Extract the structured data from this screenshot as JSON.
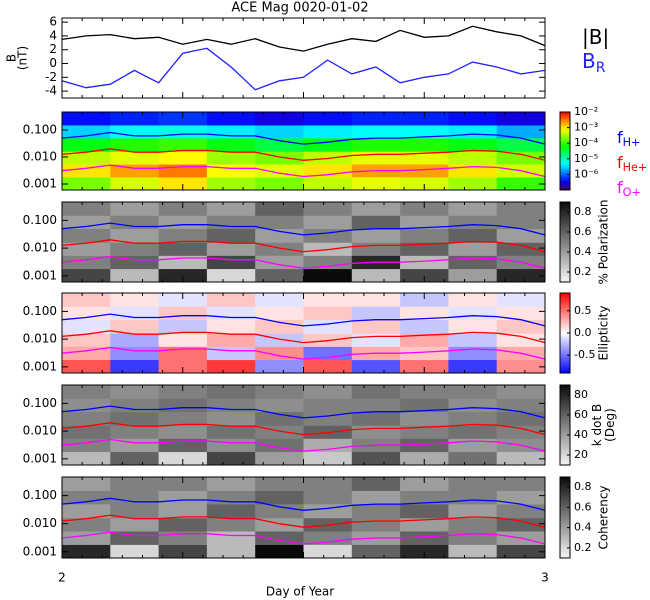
{
  "chart_data": [
    {
      "type": "line",
      "title": "ACE Mag 0020-01-02",
      "ylabel": [
        "B",
        "(nT)"
      ],
      "xlim": [
        2,
        3
      ],
      "ylim": [
        -5,
        6.6
      ],
      "yticks": [
        -4,
        -2,
        0,
        2,
        4,
        6
      ],
      "x": [
        2,
        2.05,
        2.1,
        2.15,
        2.2,
        2.25,
        2.3,
        2.35,
        2.4,
        2.45,
        2.5,
        2.55,
        2.6,
        2.65,
        2.7,
        2.75,
        2.8,
        2.85,
        2.9,
        2.95,
        3
      ],
      "series": [
        {
          "name": "|B|",
          "color": "#000000",
          "values": [
            3.5,
            4,
            4.2,
            3.6,
            3.8,
            2.8,
            3.5,
            2.8,
            3.6,
            2.4,
            1.8,
            2.8,
            3.6,
            3.2,
            4.8,
            3.8,
            4.0,
            5.4,
            4.6,
            4.0,
            2.6
          ]
        },
        {
          "name": "B",
          "subscript": "R",
          "color": "#2020ff",
          "values": [
            -2.5,
            -3.5,
            -3,
            -1,
            -2.8,
            1.5,
            2.2,
            -0.5,
            -3.8,
            -2.5,
            -2,
            0.5,
            -1.5,
            -0.5,
            -2.8,
            -2,
            -1.5,
            0.2,
            -0.5,
            -1.5,
            -1
          ]
        }
      ]
    },
    {
      "type": "heatmap",
      "colormap": "rainbow",
      "zscale": "log",
      "yscale": "log",
      "xlim": [
        2,
        3
      ],
      "ylim": [
        0.0006,
        0.46
      ],
      "yticks": [
        {
          "value": 0.1,
          "label": "0.100"
        },
        {
          "value": 0.01,
          "label": "0.010"
        },
        {
          "value": 0.001,
          "label": "0.001"
        }
      ],
      "zlim": [
        1e-07,
        0.01
      ],
      "zticks": [
        {
          "value": 0.01,
          "label": "10⁻²"
        },
        {
          "value": 0.001,
          "label": "10⁻³"
        },
        {
          "value": 0.0001,
          "label": "10⁻⁴"
        },
        {
          "value": 1e-05,
          "label": "10⁻⁵"
        },
        {
          "value": 1e-06,
          "label": "10⁻⁶"
        }
      ],
      "x_edges": [
        2,
        2.1,
        2.2,
        2.3,
        2.4,
        2.5,
        2.6,
        2.7,
        2.8,
        2.9,
        3
      ],
      "y_edges": [
        0.0006,
        0.0018,
        0.0054,
        0.016,
        0.05,
        0.15,
        0.46
      ],
      "z": [
        [
          0.0002,
          0.0005,
          0.001,
          0.0003,
          0.0002,
          0.0004,
          0.0006,
          0.0005,
          0.0003,
          0.0001
        ],
        [
          0.001,
          0.002,
          0.003,
          0.0008,
          0.0006,
          0.001,
          0.002,
          0.002,
          0.001,
          0.0005
        ],
        [
          0.0004,
          0.0006,
          0.0008,
          0.0003,
          0.0002,
          0.0004,
          0.0006,
          0.0006,
          0.0004,
          0.0002
        ],
        [
          5e-05,
          8e-05,
          0.0001,
          5e-05,
          3e-05,
          5e-05,
          8e-05,
          8e-05,
          5e-05,
          3e-05
        ],
        [
          3e-06,
          5e-06,
          6e-06,
          4e-06,
          3e-06,
          4e-06,
          5e-06,
          5e-06,
          4e-06,
          2e-06
        ],
        [
          4e-07,
          5e-07,
          6e-07,
          4e-07,
          3e-07,
          4e-07,
          5e-07,
          5e-07,
          4e-07,
          3e-07
        ]
      ],
      "x": [
        2,
        2.05,
        2.1,
        2.15,
        2.2,
        2.25,
        2.3,
        2.35,
        2.4,
        2.45,
        2.5,
        2.55,
        2.6,
        2.65,
        2.7,
        2.75,
        2.8,
        2.85,
        2.9,
        2.95,
        3
      ],
      "series": [
        {
          "name": "f",
          "subscript": "H+",
          "color": "#0000ff",
          "values": [
            0.05,
            0.06,
            0.08,
            0.06,
            0.06,
            0.07,
            0.07,
            0.06,
            0.06,
            0.04,
            0.03,
            0.035,
            0.045,
            0.05,
            0.05,
            0.055,
            0.06,
            0.07,
            0.065,
            0.05,
            0.03
          ]
        },
        {
          "name": "f",
          "subscript": "He+",
          "color": "#ff0000",
          "values": [
            0.0125,
            0.015,
            0.02,
            0.015,
            0.015,
            0.0175,
            0.0175,
            0.015,
            0.015,
            0.01,
            0.0075,
            0.0088,
            0.0113,
            0.0125,
            0.0125,
            0.0138,
            0.015,
            0.0175,
            0.0163,
            0.0125,
            0.0075
          ]
        },
        {
          "name": "f",
          "subscript": "O+",
          "color": "#ff00ff",
          "values": [
            0.0031,
            0.0038,
            0.005,
            0.0038,
            0.0038,
            0.0044,
            0.0044,
            0.0038,
            0.0038,
            0.0025,
            0.0019,
            0.0022,
            0.0028,
            0.0031,
            0.0031,
            0.0034,
            0.0038,
            0.0044,
            0.0041,
            0.0031,
            0.0019
          ]
        }
      ]
    },
    {
      "type": "heatmap",
      "colormap": "gray",
      "yscale": "log",
      "zlabel": "% Polarization",
      "xlim": [
        2,
        3
      ],
      "ylim": [
        0.0006,
        0.46
      ],
      "yticks": [
        {
          "value": 0.1,
          "label": "0.100"
        },
        {
          "value": 0.01,
          "label": "0.010"
        },
        {
          "value": 0.001,
          "label": "0.001"
        }
      ],
      "zlim": [
        0.1,
        0.9
      ],
      "zticks": [
        0.2,
        0.4,
        0.6,
        0.8
      ],
      "x_edges": [
        2,
        2.1,
        2.2,
        2.3,
        2.4,
        2.5,
        2.6,
        2.7,
        2.8,
        2.9,
        3
      ],
      "y_edges": [
        0.0006,
        0.0018,
        0.0054,
        0.016,
        0.05,
        0.15,
        0.46
      ],
      "z": [
        [
          0.7,
          0.3,
          0.8,
          0.2,
          0.6,
          0.9,
          0.3,
          0.7,
          0.4,
          0.8
        ],
        [
          0.5,
          0.6,
          0.3,
          0.7,
          0.4,
          0.5,
          0.8,
          0.3,
          0.6,
          0.5
        ],
        [
          0.4,
          0.5,
          0.6,
          0.4,
          0.5,
          0.3,
          0.5,
          0.6,
          0.4,
          0.6
        ],
        [
          0.5,
          0.4,
          0.5,
          0.6,
          0.4,
          0.5,
          0.4,
          0.5,
          0.6,
          0.4
        ],
        [
          0.4,
          0.5,
          0.4,
          0.5,
          0.5,
          0.4,
          0.6,
          0.4,
          0.5,
          0.5
        ],
        [
          0.5,
          0.4,
          0.5,
          0.4,
          0.6,
          0.5,
          0.4,
          0.5,
          0.4,
          0.5
        ]
      ]
    },
    {
      "type": "heatmap",
      "colormap": "bwr",
      "yscale": "log",
      "zlabel": "Ellipticity",
      "xlim": [
        2,
        3
      ],
      "ylim": [
        0.0006,
        0.46
      ],
      "yticks": [
        {
          "value": 0.1,
          "label": "0.100"
        },
        {
          "value": 0.01,
          "label": "0.010"
        },
        {
          "value": 0.001,
          "label": "0.001"
        }
      ],
      "zlim": [
        -0.9,
        0.9
      ],
      "zticks": [
        0.5,
        {
          "value": 0,
          "label": "0.0"
        },
        -0.5
      ],
      "x_edges": [
        2,
        2.1,
        2.2,
        2.3,
        2.4,
        2.5,
        2.6,
        2.7,
        2.8,
        2.9,
        3
      ],
      "y_edges": [
        0.0006,
        0.0018,
        0.0054,
        0.016,
        0.05,
        0.15,
        0.46
      ],
      "z": [
        [
          0.6,
          -0.7,
          0.5,
          0.7,
          -0.4,
          0.6,
          -0.6,
          0.5,
          -0.7,
          0.4
        ],
        [
          0.3,
          -0.4,
          0.5,
          -0.2,
          0.4,
          -0.5,
          0.3,
          0.2,
          -0.4,
          0.3
        ],
        [
          0.2,
          -0.3,
          0.1,
          0.3,
          -0.2,
          0.2,
          -0.1,
          0.3,
          -0.2,
          0.1
        ],
        [
          -0.1,
          0.2,
          -0.2,
          0.1,
          0.2,
          -0.1,
          0.2,
          -0.2,
          0.1,
          0.2
        ],
        [
          0.1,
          -0.1,
          0.2,
          -0.1,
          0.1,
          0.2,
          -0.2,
          0.1,
          -0.1,
          0.1
        ],
        [
          0.2,
          0.1,
          -0.1,
          0.2,
          -0.1,
          0.1,
          0.1,
          -0.2,
          0.1,
          -0.1
        ]
      ]
    },
    {
      "type": "heatmap",
      "colormap": "gray",
      "yscale": "log",
      "zlabel": [
        "k dot B",
        "(Deg)"
      ],
      "xlim": [
        2,
        3
      ],
      "ylim": [
        0.0006,
        0.46
      ],
      "yticks": [
        {
          "value": 0.1,
          "label": "0.100"
        },
        {
          "value": 0.01,
          "label": "0.010"
        },
        {
          "value": 0.001,
          "label": "0.001"
        }
      ],
      "zlim": [
        10,
        90
      ],
      "zticks": [
        20,
        40,
        60,
        80
      ],
      "x_edges": [
        2,
        2.1,
        2.2,
        2.3,
        2.4,
        2.5,
        2.6,
        2.7,
        2.8,
        2.9,
        3
      ],
      "y_edges": [
        0.0006,
        0.0018,
        0.0054,
        0.016,
        0.05,
        0.15,
        0.46
      ],
      "z": [
        [
          30,
          60,
          20,
          70,
          40,
          25,
          65,
          35,
          55,
          30
        ],
        [
          50,
          40,
          60,
          45,
          55,
          35,
          50,
          60,
          40,
          45
        ],
        [
          55,
          50,
          45,
          55,
          50,
          60,
          45,
          50,
          55,
          50
        ],
        [
          50,
          55,
          50,
          45,
          55,
          50,
          55,
          45,
          50,
          55
        ],
        [
          45,
          50,
          55,
          50,
          45,
          50,
          50,
          55,
          45,
          50
        ],
        [
          50,
          45,
          50,
          55,
          50,
          45,
          55,
          50,
          50,
          45
        ]
      ]
    },
    {
      "type": "heatmap",
      "colormap": "gray",
      "yscale": "log",
      "zlabel": "Coherency",
      "xlim": [
        2,
        3
      ],
      "ylim": [
        0.0006,
        0.46
      ],
      "yticks": [
        {
          "value": 0.1,
          "label": "0.100"
        },
        {
          "value": 0.01,
          "label": "0.010"
        },
        {
          "value": 0.001,
          "label": "0.001"
        }
      ],
      "zlim": [
        0.1,
        0.9
      ],
      "zticks": [
        0.2,
        0.4,
        0.6,
        0.8
      ],
      "xticks": [
        2,
        3
      ],
      "xlabel": "Day of Year",
      "x_edges": [
        2,
        2.1,
        2.2,
        2.3,
        2.4,
        2.5,
        2.6,
        2.7,
        2.8,
        2.9,
        3
      ],
      "y_edges": [
        0.0006,
        0.0018,
        0.0054,
        0.016,
        0.05,
        0.15,
        0.46
      ],
      "z": [
        [
          0.8,
          0.2,
          0.7,
          0.3,
          0.9,
          0.2,
          0.6,
          0.8,
          0.3,
          0.7
        ],
        [
          0.4,
          0.6,
          0.5,
          0.3,
          0.6,
          0.5,
          0.4,
          0.6,
          0.5,
          0.4
        ],
        [
          0.5,
          0.4,
          0.6,
          0.5,
          0.4,
          0.6,
          0.5,
          0.4,
          0.5,
          0.6
        ],
        [
          0.4,
          0.5,
          0.4,
          0.6,
          0.5,
          0.4,
          0.5,
          0.6,
          0.4,
          0.5
        ],
        [
          0.5,
          0.5,
          0.4,
          0.5,
          0.6,
          0.5,
          0.4,
          0.5,
          0.5,
          0.4
        ],
        [
          0.4,
          0.5,
          0.5,
          0.4,
          0.5,
          0.5,
          0.6,
          0.4,
          0.5,
          0.5
        ]
      ]
    }
  ]
}
